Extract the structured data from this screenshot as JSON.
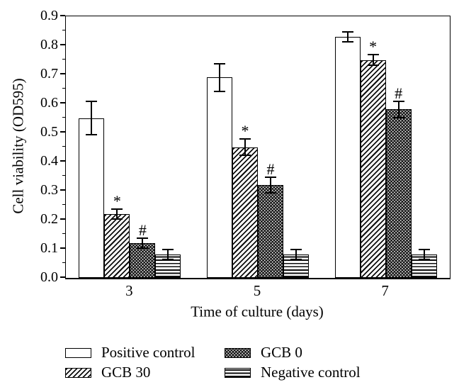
{
  "figure": {
    "background": "#ffffff",
    "ink_color": "#000000"
  },
  "chart_data": {
    "type": "bar",
    "title": "",
    "xlabel": "Time of culture (days)",
    "ylabel": "Cell viability (OD595)",
    "ylim": [
      0,
      0.9
    ],
    "yticks": [
      "0.0",
      "0.1",
      "0.2",
      "0.3",
      "0.4",
      "0.5",
      "0.6",
      "0.7",
      "0.8",
      "0.9"
    ],
    "minor_ticks": [
      0.05,
      0.15,
      0.25,
      0.35,
      0.45,
      0.55,
      0.65,
      0.75,
      0.85
    ],
    "grid": "off",
    "categories": [
      "3",
      "5",
      "7"
    ],
    "series": [
      {
        "name": "Positive control",
        "pattern": "plain",
        "values": [
          0.55,
          0.69,
          0.83
        ],
        "errors": [
          0.06,
          0.05,
          0.02
        ],
        "annotation": ""
      },
      {
        "name": "GCB 30",
        "pattern": "diagonal-hatch",
        "values": [
          0.22,
          0.45,
          0.75
        ],
        "errors": [
          0.02,
          0.03,
          0.02
        ],
        "annotation": "*"
      },
      {
        "name": "GCB 0",
        "pattern": "dense-dots",
        "values": [
          0.12,
          0.32,
          0.58
        ],
        "errors": [
          0.02,
          0.03,
          0.03
        ],
        "annotation": "#"
      },
      {
        "name": "Negative control",
        "pattern": "horizontal-lines",
        "values": [
          0.08,
          0.08,
          0.08
        ],
        "errors": [
          0.02,
          0.02,
          0.02
        ],
        "annotation": ""
      }
    ],
    "legend": {
      "position": "bottom",
      "columns": [
        [
          {
            "label": "Positive control",
            "pattern": "plain"
          },
          {
            "label": "GCB 30",
            "pattern": "diagonal-hatch"
          }
        ],
        [
          {
            "label": "GCB 0",
            "pattern": "dense-dots"
          },
          {
            "label": "Negative control",
            "pattern": "horizontal-lines"
          }
        ]
      ]
    }
  }
}
